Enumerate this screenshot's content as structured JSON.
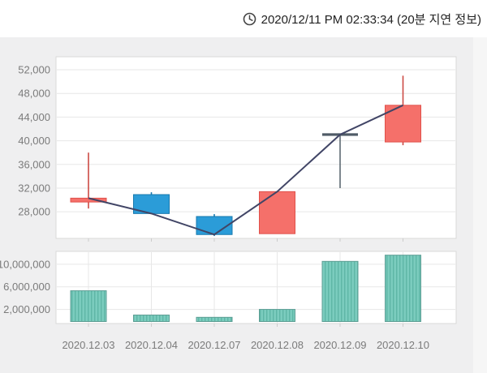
{
  "header": {
    "timestamp": "2020/12/11 PM 02:33:34 (20분 지연 정보)",
    "clock_icon": "clock-icon"
  },
  "colors": {
    "up_fill": "#f5706a",
    "up_border": "#e0514b",
    "up_wick": "#cc4a44",
    "down_fill": "#2b9cd8",
    "down_border": "#1879ae",
    "flat": "#4f5b66",
    "flat_wick": "#5d6a73",
    "close_line": "#414566",
    "volume_fill": "#7bccbe",
    "volume_stripe": "#5eb6a6",
    "volume_border": "#5d9e94",
    "panel_bg": "#efeff0",
    "plot_bg": "#ffffff",
    "plot_border": "#d9d9d9",
    "grid": "#e7e7e7",
    "tick": "#cccccc",
    "axis_text": "#7b7b7b",
    "header_text": "#222222",
    "icon": "#444444"
  },
  "chart_data": [
    {
      "type": "candlestick",
      "categories": [
        "2020.12.03",
        "2020.12.04",
        "2020.12.07",
        "2020.12.08",
        "2020.12.09",
        "2020.12.10"
      ],
      "ohlc": [
        {
          "date": "2020.12.03",
          "open": 29650,
          "high": 38000,
          "low": 28550,
          "close": 30300,
          "direction": "up"
        },
        {
          "date": "2020.12.04",
          "open": 30900,
          "high": 31300,
          "low": 27700,
          "close": 27700,
          "direction": "down"
        },
        {
          "date": "2020.12.07",
          "open": 27200,
          "high": 27600,
          "low": 23900,
          "close": 24150,
          "direction": "down"
        },
        {
          "date": "2020.12.08",
          "open": 24300,
          "high": 31400,
          "low": 24300,
          "close": 31400,
          "direction": "up"
        },
        {
          "date": "2020.12.09",
          "open": 41050,
          "high": 41050,
          "low": 32000,
          "close": 41050,
          "direction": "flat"
        },
        {
          "date": "2020.12.10",
          "open": 39800,
          "high": 51000,
          "low": 39250,
          "close": 46000,
          "direction": "up"
        }
      ],
      "overlay_line": {
        "name": "close-price-line",
        "values": [
          30300,
          27700,
          24150,
          31400,
          41050,
          46000
        ]
      },
      "yticks": [
        {
          "value": 52000,
          "label": "52,000"
        },
        {
          "value": 48000,
          "label": "48,000"
        },
        {
          "value": 44000,
          "label": "44,000"
        },
        {
          "value": 40000,
          "label": "40,000"
        },
        {
          "value": 36000,
          "label": "36,000"
        },
        {
          "value": 32000,
          "label": "32,000"
        },
        {
          "value": 28000,
          "label": "28,000"
        }
      ],
      "ylim": [
        23500,
        54200
      ],
      "grid": "horizontal",
      "legend": "none"
    },
    {
      "type": "bar",
      "name": "volume",
      "categories": [
        "2020.12.03",
        "2020.12.04",
        "2020.12.07",
        "2020.12.08",
        "2020.12.09",
        "2020.12.10"
      ],
      "values": [
        5300000,
        1000000,
        600000,
        2000000,
        10500000,
        11600000
      ],
      "yticks": [
        {
          "value": 10000000,
          "label": "10,000,000"
        },
        {
          "value": 6000000,
          "label": "6,000,000"
        },
        {
          "value": 2000000,
          "label": "2,000,000"
        }
      ],
      "ylim": [
        0,
        12270000
      ],
      "grid": "both",
      "legend": "none"
    }
  ]
}
